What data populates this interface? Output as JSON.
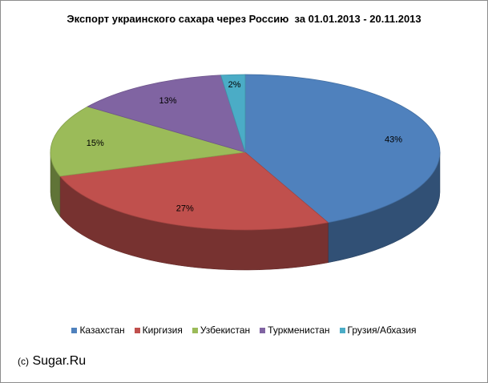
{
  "chart_data": {
    "type": "pie",
    "title": "Экспорт украинского сахара через Россию  за 01.01.2013 - 20.11.2013",
    "categories": [
      "Казахстан",
      "Киргизия",
      "Узбекистан",
      "Туркменистан",
      "Грузия/Абхазия"
    ],
    "values": [
      43,
      27,
      15,
      13,
      2
    ],
    "value_labels": [
      "43%",
      "27%",
      "15%",
      "13%",
      "2%"
    ],
    "colors": [
      "#4f81bd",
      "#c0504d",
      "#9bbb59",
      "#8064a2",
      "#4bacc6"
    ],
    "legend_position": "bottom",
    "style": "3d"
  },
  "credit": {
    "prefix": "(c)",
    "text": "Sugar.Ru"
  }
}
